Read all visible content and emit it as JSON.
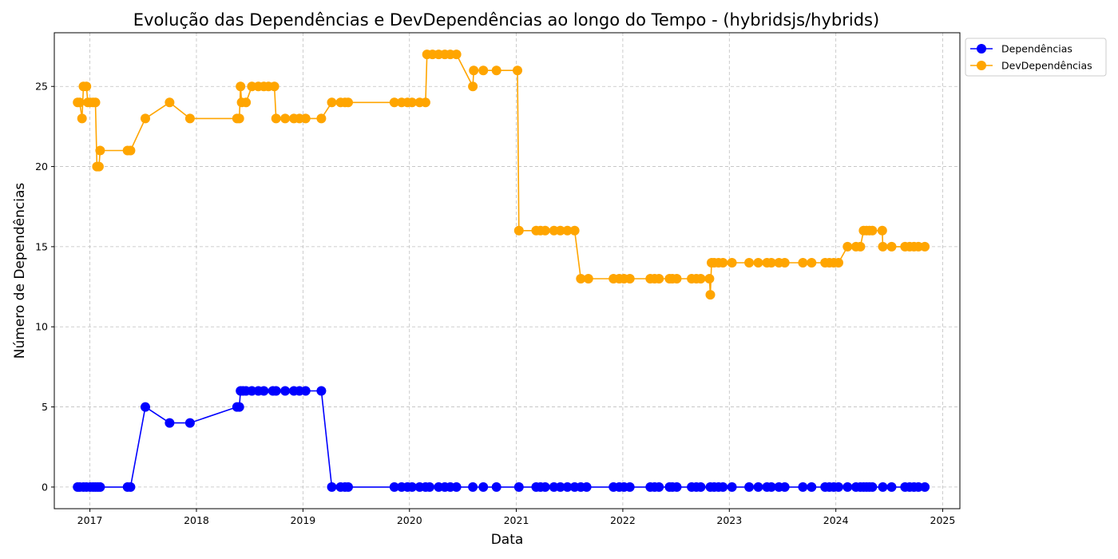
{
  "chart_data": {
    "type": "line",
    "title": "Evolução das Dependências e DevDependências ao longo do Tempo - (hybridsjs/hybrids)",
    "xlabel": "Data",
    "ylabel": "Número de Dependências",
    "xlim": [
      "2016-09-01",
      "2025-03-01"
    ],
    "ylim": [
      -1.35,
      28.35
    ],
    "x_ticks": [
      "2017",
      "2018",
      "2019",
      "2020",
      "2021",
      "2022",
      "2023",
      "2024",
      "2025"
    ],
    "y_ticks": [
      0,
      5,
      10,
      15,
      20,
      25
    ],
    "grid": true,
    "legend_position": "outside-top-right",
    "series": [
      {
        "name": "Dependências",
        "color": "#0000ff",
        "marker": "circle",
        "points": [
          [
            "2016-11-20",
            0
          ],
          [
            "2016-11-27",
            0
          ],
          [
            "2016-12-10",
            0
          ],
          [
            "2016-12-20",
            0
          ],
          [
            "2017-01-02",
            0
          ],
          [
            "2017-01-12",
            0
          ],
          [
            "2017-01-20",
            0
          ],
          [
            "2017-01-28",
            0
          ],
          [
            "2017-02-05",
            0
          ],
          [
            "2017-05-10",
            0
          ],
          [
            "2017-05-20",
            0
          ],
          [
            "2017-07-10",
            5
          ],
          [
            "2017-10-01",
            4
          ],
          [
            "2017-12-10",
            4
          ],
          [
            "2018-05-20",
            5
          ],
          [
            "2018-05-28",
            5
          ],
          [
            "2018-06-01",
            6
          ],
          [
            "2018-06-10",
            6
          ],
          [
            "2018-06-20",
            6
          ],
          [
            "2018-07-10",
            6
          ],
          [
            "2018-08-01",
            6
          ],
          [
            "2018-08-20",
            6
          ],
          [
            "2018-09-20",
            6
          ],
          [
            "2018-10-01",
            6
          ],
          [
            "2018-11-01",
            6
          ],
          [
            "2018-12-01",
            6
          ],
          [
            "2018-12-20",
            6
          ],
          [
            "2019-01-10",
            6
          ],
          [
            "2019-03-05",
            6
          ],
          [
            "2019-04-10",
            0
          ],
          [
            "2019-05-10",
            0
          ],
          [
            "2019-05-25",
            0
          ],
          [
            "2019-06-05",
            0
          ],
          [
            "2019-11-10",
            0
          ],
          [
            "2019-12-05",
            0
          ],
          [
            "2019-12-25",
            0
          ],
          [
            "2020-01-10",
            0
          ],
          [
            "2020-02-05",
            0
          ],
          [
            "2020-02-25",
            0
          ],
          [
            "2020-03-10",
            0
          ],
          [
            "2020-04-10",
            0
          ],
          [
            "2020-05-01",
            0
          ],
          [
            "2020-05-20",
            0
          ],
          [
            "2020-06-10",
            0
          ],
          [
            "2020-08-05",
            0
          ],
          [
            "2020-09-10",
            0
          ],
          [
            "2020-10-25",
            0
          ],
          [
            "2021-01-10",
            0
          ],
          [
            "2021-03-10",
            0
          ],
          [
            "2021-03-25",
            0
          ],
          [
            "2021-04-10",
            0
          ],
          [
            "2021-05-10",
            0
          ],
          [
            "2021-06-01",
            0
          ],
          [
            "2021-06-25",
            0
          ],
          [
            "2021-07-20",
            0
          ],
          [
            "2021-08-10",
            0
          ],
          [
            "2021-08-30",
            0
          ],
          [
            "2021-11-30",
            0
          ],
          [
            "2021-12-20",
            0
          ],
          [
            "2022-01-05",
            0
          ],
          [
            "2022-01-25",
            0
          ],
          [
            "2022-04-05",
            0
          ],
          [
            "2022-04-20",
            0
          ],
          [
            "2022-05-05",
            0
          ],
          [
            "2022-06-10",
            0
          ],
          [
            "2022-06-20",
            0
          ],
          [
            "2022-07-05",
            0
          ],
          [
            "2022-08-25",
            0
          ],
          [
            "2022-09-10",
            0
          ],
          [
            "2022-09-25",
            0
          ],
          [
            "2022-10-28",
            0
          ],
          [
            "2022-11-10",
            0
          ],
          [
            "2022-11-25",
            0
          ],
          [
            "2022-12-10",
            0
          ],
          [
            "2023-01-10",
            0
          ],
          [
            "2023-03-10",
            0
          ],
          [
            "2023-04-10",
            0
          ],
          [
            "2023-05-10",
            0
          ],
          [
            "2023-05-25",
            0
          ],
          [
            "2023-06-20",
            0
          ],
          [
            "2023-07-10",
            0
          ],
          [
            "2023-09-10",
            0
          ],
          [
            "2023-10-10",
            0
          ],
          [
            "2023-11-25",
            0
          ],
          [
            "2023-12-10",
            0
          ],
          [
            "2023-12-25",
            0
          ],
          [
            "2024-01-10",
            0
          ],
          [
            "2024-02-10",
            0
          ],
          [
            "2024-03-10",
            0
          ],
          [
            "2024-03-25",
            0
          ],
          [
            "2024-04-05",
            0
          ],
          [
            "2024-04-15",
            0
          ],
          [
            "2024-04-25",
            0
          ],
          [
            "2024-05-05",
            0
          ],
          [
            "2024-06-10",
            0
          ],
          [
            "2024-07-10",
            0
          ],
          [
            "2024-08-25",
            0
          ],
          [
            "2024-09-10",
            0
          ],
          [
            "2024-09-25",
            0
          ],
          [
            "2024-10-10",
            0
          ],
          [
            "2024-11-01",
            0
          ]
        ]
      },
      {
        "name": "DevDependências",
        "color": "#ffa500",
        "marker": "circle",
        "points": [
          [
            "2016-11-20",
            24
          ],
          [
            "2016-11-27",
            24
          ],
          [
            "2016-12-05",
            23
          ],
          [
            "2016-12-10",
            25
          ],
          [
            "2016-12-20",
            25
          ],
          [
            "2016-12-25",
            24
          ],
          [
            "2017-01-02",
            24
          ],
          [
            "2017-01-12",
            24
          ],
          [
            "2017-01-20",
            24
          ],
          [
            "2017-01-25",
            20
          ],
          [
            "2017-02-01",
            20
          ],
          [
            "2017-02-05",
            21
          ],
          [
            "2017-05-10",
            21
          ],
          [
            "2017-05-20",
            21
          ],
          [
            "2017-07-10",
            23
          ],
          [
            "2017-10-01",
            24
          ],
          [
            "2017-12-10",
            23
          ],
          [
            "2018-05-20",
            23
          ],
          [
            "2018-05-28",
            23
          ],
          [
            "2018-06-01",
            25
          ],
          [
            "2018-06-05",
            24
          ],
          [
            "2018-06-20",
            24
          ],
          [
            "2018-07-10",
            25
          ],
          [
            "2018-08-01",
            25
          ],
          [
            "2018-08-20",
            25
          ],
          [
            "2018-09-05",
            25
          ],
          [
            "2018-09-25",
            25
          ],
          [
            "2018-10-01",
            23
          ],
          [
            "2018-11-01",
            23
          ],
          [
            "2018-12-01",
            23
          ],
          [
            "2018-12-20",
            23
          ],
          [
            "2019-01-10",
            23
          ],
          [
            "2019-03-05",
            23
          ],
          [
            "2019-04-10",
            24
          ],
          [
            "2019-05-10",
            24
          ],
          [
            "2019-05-25",
            24
          ],
          [
            "2019-06-05",
            24
          ],
          [
            "2019-11-10",
            24
          ],
          [
            "2019-12-05",
            24
          ],
          [
            "2019-12-25",
            24
          ],
          [
            "2020-01-10",
            24
          ],
          [
            "2020-02-05",
            24
          ],
          [
            "2020-02-25",
            24
          ],
          [
            "2020-03-01",
            27
          ],
          [
            "2020-03-20",
            27
          ],
          [
            "2020-04-10",
            27
          ],
          [
            "2020-05-01",
            27
          ],
          [
            "2020-05-20",
            27
          ],
          [
            "2020-06-10",
            27
          ],
          [
            "2020-08-05",
            25
          ],
          [
            "2020-08-08",
            26
          ],
          [
            "2020-09-10",
            26
          ],
          [
            "2020-10-25",
            26
          ],
          [
            "2021-01-05",
            26
          ],
          [
            "2021-01-10",
            16
          ],
          [
            "2021-03-10",
            16
          ],
          [
            "2021-03-25",
            16
          ],
          [
            "2021-04-10",
            16
          ],
          [
            "2021-05-10",
            16
          ],
          [
            "2021-06-01",
            16
          ],
          [
            "2021-06-25",
            16
          ],
          [
            "2021-07-20",
            16
          ],
          [
            "2021-08-10",
            13
          ],
          [
            "2021-09-05",
            13
          ],
          [
            "2021-11-30",
            13
          ],
          [
            "2021-12-20",
            13
          ],
          [
            "2022-01-05",
            13
          ],
          [
            "2022-01-25",
            13
          ],
          [
            "2022-04-05",
            13
          ],
          [
            "2022-04-20",
            13
          ],
          [
            "2022-05-05",
            13
          ],
          [
            "2022-06-10",
            13
          ],
          [
            "2022-06-20",
            13
          ],
          [
            "2022-07-05",
            13
          ],
          [
            "2022-08-25",
            13
          ],
          [
            "2022-09-10",
            13
          ],
          [
            "2022-09-25",
            13
          ],
          [
            "2022-10-25",
            13
          ],
          [
            "2022-10-28",
            12
          ],
          [
            "2022-11-01",
            14
          ],
          [
            "2022-11-10",
            14
          ],
          [
            "2022-11-25",
            14
          ],
          [
            "2022-12-10",
            14
          ],
          [
            "2023-01-10",
            14
          ],
          [
            "2023-03-10",
            14
          ],
          [
            "2023-04-10",
            14
          ],
          [
            "2023-05-10",
            14
          ],
          [
            "2023-05-25",
            14
          ],
          [
            "2023-06-20",
            14
          ],
          [
            "2023-07-10",
            14
          ],
          [
            "2023-09-10",
            14
          ],
          [
            "2023-10-10",
            14
          ],
          [
            "2023-11-25",
            14
          ],
          [
            "2023-12-10",
            14
          ],
          [
            "2023-12-25",
            14
          ],
          [
            "2024-01-10",
            14
          ],
          [
            "2024-02-10",
            15
          ],
          [
            "2024-03-10",
            15
          ],
          [
            "2024-03-25",
            15
          ],
          [
            "2024-04-05",
            16
          ],
          [
            "2024-04-15",
            16
          ],
          [
            "2024-04-25",
            16
          ],
          [
            "2024-05-05",
            16
          ],
          [
            "2024-06-08",
            16
          ],
          [
            "2024-06-10",
            15
          ],
          [
            "2024-07-10",
            15
          ],
          [
            "2024-08-25",
            15
          ],
          [
            "2024-09-10",
            15
          ],
          [
            "2024-09-25",
            15
          ],
          [
            "2024-10-10",
            15
          ],
          [
            "2024-11-01",
            15
          ]
        ]
      }
    ]
  }
}
